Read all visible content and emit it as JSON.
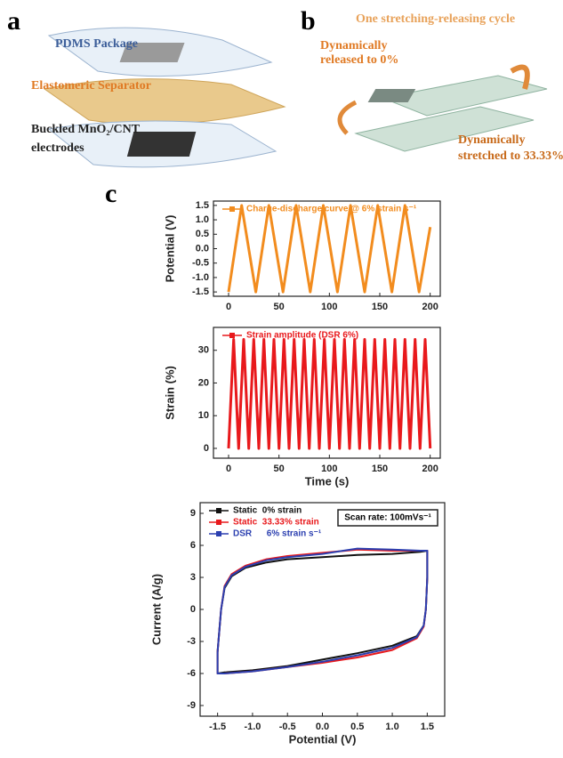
{
  "panel_a": {
    "label": "a",
    "texts": [
      "PDMS Package",
      "Elastomeric Separator",
      "Buckled MnO₂/CNT",
      "electrodes"
    ]
  },
  "panel_b": {
    "label": "b",
    "title": "One stretching-releasing cycle",
    "texts": [
      "Dynamically",
      "released to 0%",
      "Dynamically",
      "stretched to 33.33%"
    ]
  },
  "panel_c": {
    "label": "c"
  },
  "chart_data": [
    {
      "type": "line",
      "ylabel": "Potential (V)",
      "x": [
        0,
        13,
        27,
        40,
        54,
        67,
        81,
        94,
        108,
        121,
        135,
        148,
        162,
        175,
        189,
        200
      ],
      "series": [
        {
          "name": "Charge-discharge curve @ 6% strain s⁻¹",
          "color": "#f28c1e",
          "values": [
            -1.5,
            1.5,
            -1.5,
            1.5,
            -1.5,
            1.5,
            -1.5,
            1.5,
            -1.5,
            1.5,
            -1.5,
            1.5,
            -1.5,
            1.5,
            -1.5,
            0.75
          ]
        }
      ],
      "xlim": [
        -15,
        210
      ],
      "ylim": [
        -1.65,
        1.65
      ],
      "xticks": [
        0,
        50,
        100,
        150,
        200
      ],
      "yticks": [
        -1.5,
        {
          "value": -1.0,
          "label": "-1.0"
        },
        -0.5,
        {
          "value": 0,
          "label": "0.0"
        },
        0.5,
        {
          "value": 1.0,
          "label": "1.0"
        },
        1.5
      ]
    },
    {
      "type": "line",
      "ylabel": "Strain (%)",
      "xlabel": "Time (s)",
      "x": [
        0,
        5,
        10,
        15,
        20,
        25,
        30,
        35,
        40,
        45,
        50,
        55,
        60,
        65,
        70,
        75,
        80,
        85,
        90,
        95,
        100,
        105,
        110,
        115,
        120,
        125,
        130,
        135,
        140,
        145,
        150,
        155,
        160,
        165,
        170,
        175,
        180,
        185,
        190,
        195,
        200
      ],
      "series": [
        {
          "name": "Strain amplitude (DSR 6%)",
          "color": "#e8191c",
          "values": [
            0,
            33.33,
            0,
            33.33,
            0,
            33.33,
            0,
            33.33,
            0,
            33.33,
            0,
            33.33,
            0,
            33.33,
            0,
            33.33,
            0,
            33.33,
            0,
            33.33,
            0,
            33.33,
            0,
            33.33,
            0,
            33.33,
            0,
            33.33,
            0,
            33.33,
            0,
            33.33,
            0,
            33.33,
            0,
            33.33,
            0,
            33.33,
            0,
            33.33,
            0
          ]
        }
      ],
      "xlim": [
        -15,
        210
      ],
      "ylim": [
        -3,
        37
      ],
      "xticks": [
        0,
        50,
        100,
        150,
        200
      ],
      "yticks": [
        0,
        10,
        20,
        30
      ]
    },
    {
      "type": "line",
      "ylabel": "Current (A/g)",
      "xlabel": "Potential (V)",
      "annotation": "Scan rate: 100mVs⁻¹",
      "series": [
        {
          "name": "Static  0% strain",
          "color": "#111111",
          "x": [
            -1.5,
            -1.45,
            -1.4,
            -1.3,
            -1.1,
            -0.8,
            -0.5,
            0,
            0.5,
            1.0,
            1.4,
            1.5,
            1.5,
            1.48,
            1.45,
            1.35,
            1.0,
            0.5,
            0,
            -0.5,
            -1.0,
            -1.4,
            -1.5,
            -1.5
          ],
          "values": [
            -4,
            0,
            2,
            3.1,
            3.9,
            4.4,
            4.7,
            4.9,
            5.1,
            5.2,
            5.4,
            5.5,
            3,
            0,
            -1.5,
            -2.5,
            -3.4,
            -4.1,
            -4.7,
            -5.3,
            -5.7,
            -5.9,
            -6,
            -4
          ]
        },
        {
          "name": "Static  33.33% strain",
          "color": "#e8191c",
          "x": [
            -1.5,
            -1.45,
            -1.4,
            -1.3,
            -1.1,
            -0.8,
            -0.5,
            0,
            0.5,
            1.0,
            1.4,
            1.5,
            1.5,
            1.48,
            1.45,
            1.35,
            1.0,
            0.5,
            0,
            -0.5,
            -1.0,
            -1.4,
            -1.5,
            -1.5
          ],
          "values": [
            -4,
            0,
            2.2,
            3.3,
            4.1,
            4.7,
            5.0,
            5.3,
            5.6,
            5.5,
            5.5,
            5.5,
            3,
            0,
            -1.6,
            -2.7,
            -3.8,
            -4.5,
            -5.0,
            -5.4,
            -5.8,
            -6,
            -6,
            -4
          ]
        },
        {
          "name": "DSR      6% strain s⁻¹",
          "color": "#2b3fb0",
          "x": [
            -1.5,
            -1.45,
            -1.4,
            -1.3,
            -1.1,
            -0.8,
            -0.5,
            0,
            0.5,
            1.0,
            1.4,
            1.5,
            1.5,
            1.48,
            1.45,
            1.35,
            1.0,
            0.5,
            0,
            -0.5,
            -1.0,
            -1.4,
            -1.5,
            -1.5
          ],
          "values": [
            -4,
            0,
            2.1,
            3.2,
            4.0,
            4.6,
            4.9,
            5.2,
            5.7,
            5.6,
            5.5,
            5.5,
            3,
            0,
            -1.5,
            -2.6,
            -3.6,
            -4.3,
            -4.9,
            -5.4,
            -5.8,
            -6,
            -6,
            -4
          ]
        }
      ],
      "xlim": [
        -1.75,
        1.75
      ],
      "ylim": [
        -10,
        10
      ],
      "xticks": [
        -1.5,
        {
          "value": -1.0,
          "label": "-1.0"
        },
        -0.5,
        {
          "value": 0,
          "label": "0.0"
        },
        0.5,
        {
          "value": 1.0,
          "label": "1.0"
        },
        1.5
      ],
      "yticks": [
        -9,
        -6,
        -3,
        0,
        3,
        6,
        9
      ]
    }
  ]
}
